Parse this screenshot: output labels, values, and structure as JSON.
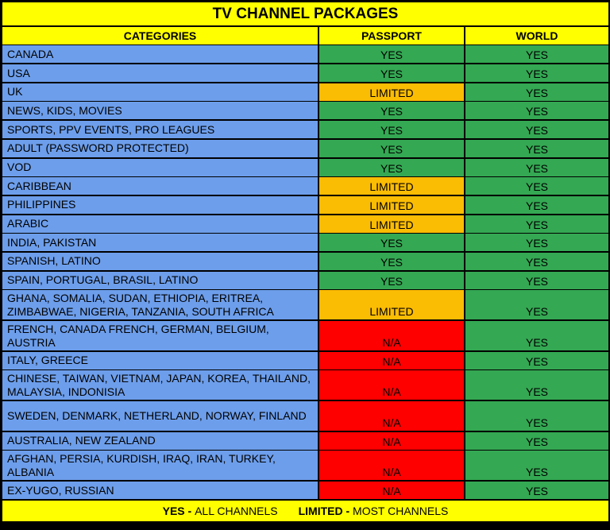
{
  "title": "TV CHANNEL PACKAGES",
  "headers": {
    "categories": "CATEGORIES",
    "passport": "PASSPORT",
    "world": "WORLD"
  },
  "colors": {
    "header": "#ffff00",
    "category": "#6d9eeb",
    "yes": "#34a853",
    "limited": "#fbbc04",
    "na": "#ff0000"
  },
  "rows": [
    {
      "category": "CANADA",
      "passport": "YES",
      "world": "YES"
    },
    {
      "category": "USA",
      "passport": "YES",
      "world": "YES"
    },
    {
      "category": "UK",
      "passport": "LIMITED",
      "world": "YES"
    },
    {
      "category": "NEWS, KIDS, MOVIES",
      "passport": "YES",
      "world": "YES"
    },
    {
      "category": "SPORTS, PPV EVENTS, PRO LEAGUES",
      "passport": "YES",
      "world": "YES"
    },
    {
      "category": "ADULT (PASSWORD PROTECTED)",
      "passport": "YES",
      "world": "YES"
    },
    {
      "category": "VOD",
      "passport": "YES",
      "world": "YES"
    },
    {
      "category": "CARIBBEAN",
      "passport": "LIMITED",
      "world": "YES"
    },
    {
      "category": "PHILIPPINES",
      "passport": "LIMITED",
      "world": "YES"
    },
    {
      "category": "ARABIC",
      "passport": "LIMITED",
      "world": "YES"
    },
    {
      "category": "INDIA, PAKISTAN",
      "passport": "YES",
      "world": "YES"
    },
    {
      "category": "SPANISH, LATINO",
      "passport": "YES",
      "world": "YES"
    },
    {
      "category": "SPAIN, PORTUGAL, BRASIL, LATINO",
      "passport": "YES",
      "world": "YES"
    },
    {
      "category": "GHANA, SOMALIA, SUDAN, ETHIOPIA, ERITREA, ZIMBABWAE, NIGERIA, TANZANIA, SOUTH AFRICA",
      "passport": "LIMITED",
      "world": "YES"
    },
    {
      "category": "FRENCH, CANADA FRENCH, GERMAN, BELGIUM, AUSTRIA",
      "passport": "N/A",
      "world": "YES"
    },
    {
      "category": "ITALY, GREECE",
      "passport": "N/A",
      "world": "YES"
    },
    {
      "category": "CHINESE, TAIWAN, VIETNAM, JAPAN, KOREA, THAILAND, MALAYSIA, INDONISIA",
      "passport": "N/A",
      "world": "YES"
    },
    {
      "category": "SWEDEN, DENMARK, NETHERLAND, NORWAY, FINLAND",
      "passport": "N/A",
      "world": "YES"
    },
    {
      "category": "AUSTRALIA, NEW ZEALAND",
      "passport": "N/A",
      "world": "YES"
    },
    {
      "category": "AFGHAN, PERSIA, KURDISH, IRAQ, IRAN, TURKEY, ALBANIA",
      "passport": "N/A",
      "world": "YES"
    },
    {
      "category": "EX-YUGO, RUSSIAN",
      "passport": "N/A",
      "world": "YES"
    }
  ],
  "footer": {
    "yes_key": "YES -",
    "yes_desc": "ALL CHANNELS",
    "limited_key": "LIMITED -",
    "limited_desc": "MOST CHANNELS"
  }
}
